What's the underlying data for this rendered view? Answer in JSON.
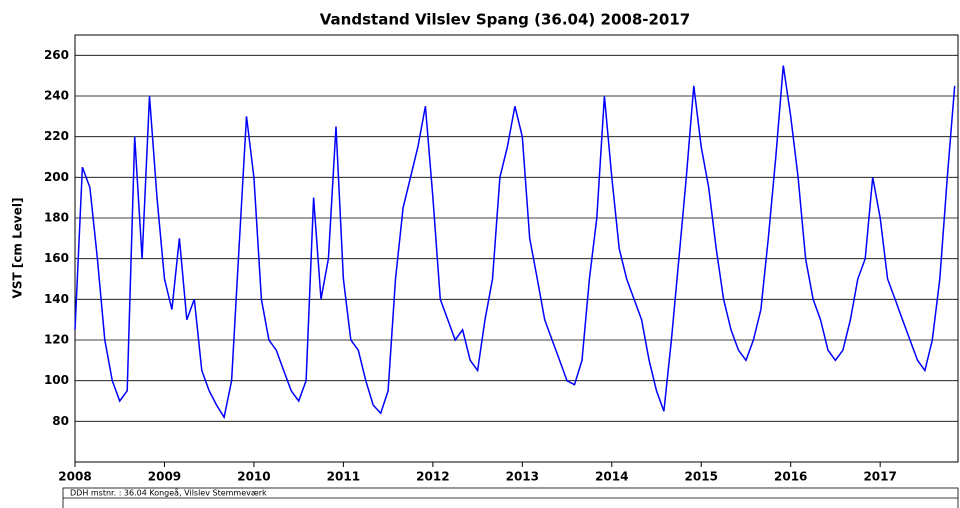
{
  "chart_data": {
    "type": "line",
    "title": "Vandstand Vilslev Spang (36.04) 2008-2017",
    "y_label": "VST [cm Level]",
    "footer": "DDH mstnr. : 36.04 Kongeå, Vilslev Stemmeværk",
    "x": [
      2008,
      2008.083,
      2008.167,
      2008.25,
      2008.333,
      2008.417,
      2008.5,
      2008.583,
      2008.667,
      2008.75,
      2008.833,
      2008.917,
      2009,
      2009.083,
      2009.167,
      2009.25,
      2009.333,
      2009.417,
      2009.5,
      2009.583,
      2009.667,
      2009.75,
      2009.833,
      2009.917,
      2010,
      2010.083,
      2010.167,
      2010.25,
      2010.333,
      2010.417,
      2010.5,
      2010.583,
      2010.667,
      2010.75,
      2010.833,
      2010.917,
      2011,
      2011.083,
      2011.167,
      2011.25,
      2011.333,
      2011.417,
      2011.5,
      2011.583,
      2011.667,
      2011.75,
      2011.833,
      2011.917,
      2012,
      2012.083,
      2012.167,
      2012.25,
      2012.333,
      2012.417,
      2012.5,
      2012.583,
      2012.667,
      2012.75,
      2012.833,
      2012.917,
      2013,
      2013.083,
      2013.167,
      2013.25,
      2013.333,
      2013.417,
      2013.5,
      2013.583,
      2013.667,
      2013.75,
      2013.833,
      2013.917,
      2014,
      2014.083,
      2014.167,
      2014.25,
      2014.333,
      2014.417,
      2014.5,
      2014.583,
      2014.667,
      2014.75,
      2014.833,
      2014.917,
      2015,
      2015.083,
      2015.167,
      2015.25,
      2015.333,
      2015.417,
      2015.5,
      2015.583,
      2015.667,
      2015.75,
      2015.833,
      2015.917,
      2016,
      2016.083,
      2016.167,
      2016.25,
      2016.333,
      2016.417,
      2016.5,
      2016.583,
      2016.667,
      2016.75,
      2016.833,
      2016.917,
      2017,
      2017.083,
      2017.167,
      2017.25,
      2017.333,
      2017.417,
      2017.5,
      2017.583,
      2017.667,
      2017.75,
      2017.833
    ],
    "series": [
      {
        "name": "VST",
        "color": "#0000ff",
        "values": [
          125,
          205,
          195,
          160,
          120,
          100,
          90,
          95,
          220,
          160,
          240,
          190,
          150,
          135,
          170,
          130,
          140,
          105,
          95,
          88,
          82,
          100,
          165,
          230,
          200,
          140,
          120,
          115,
          105,
          95,
          90,
          100,
          190,
          140,
          160,
          225,
          150,
          120,
          115,
          100,
          88,
          84,
          95,
          150,
          185,
          200,
          215,
          235,
          190,
          140,
          130,
          120,
          125,
          110,
          105,
          130,
          150,
          200,
          215,
          235,
          220,
          170,
          150,
          130,
          120,
          110,
          100,
          98,
          110,
          150,
          180,
          240,
          200,
          165,
          150,
          140,
          130,
          110,
          95,
          85,
          120,
          160,
          200,
          245,
          215,
          195,
          165,
          140,
          125,
          115,
          110,
          120,
          135,
          170,
          210,
          255,
          230,
          200,
          160,
          140,
          130,
          115,
          110,
          115,
          130,
          150,
          160,
          200,
          180,
          150,
          140,
          130,
          120,
          110,
          105,
          120,
          150,
          200,
          245
        ]
      }
    ],
    "xlim": [
      2008,
      2017.87
    ],
    "xticks": [
      2008,
      2009,
      2010,
      2011,
      2012,
      2013,
      2014,
      2015,
      2016,
      2017
    ],
    "ylim": [
      60,
      270
    ],
    "yticks": [
      80,
      100,
      120,
      140,
      160,
      180,
      200,
      220,
      240,
      260
    ],
    "grid": true
  }
}
